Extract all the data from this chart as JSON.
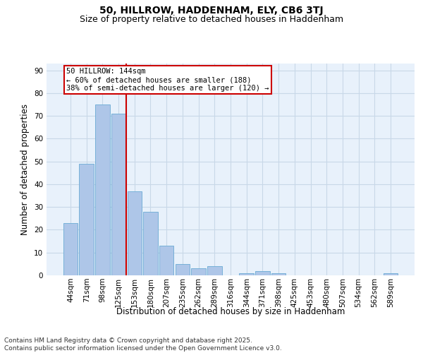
{
  "title": "50, HILLROW, HADDENHAM, ELY, CB6 3TJ",
  "subtitle": "Size of property relative to detached houses in Haddenham",
  "xlabel": "Distribution of detached houses by size in Haddenham",
  "ylabel": "Number of detached properties",
  "categories": [
    "44sqm",
    "71sqm",
    "98sqm",
    "125sqm",
    "153sqm",
    "180sqm",
    "207sqm",
    "235sqm",
    "262sqm",
    "289sqm",
    "316sqm",
    "344sqm",
    "371sqm",
    "398sqm",
    "425sqm",
    "453sqm",
    "480sqm",
    "507sqm",
    "534sqm",
    "562sqm",
    "589sqm"
  ],
  "values": [
    23,
    49,
    75,
    71,
    37,
    28,
    13,
    5,
    3,
    4,
    0,
    1,
    2,
    1,
    0,
    0,
    0,
    0,
    0,
    0,
    1
  ],
  "bar_color": "#aec6e8",
  "bar_edge_color": "#6aaad4",
  "vline_color": "#cc0000",
  "annotation_text": "50 HILLROW: 144sqm\n← 60% of detached houses are smaller (188)\n38% of semi-detached houses are larger (120) →",
  "annotation_box_color": "#cc0000",
  "ylim": [
    0,
    93
  ],
  "yticks": [
    0,
    10,
    20,
    30,
    40,
    50,
    60,
    70,
    80,
    90
  ],
  "grid_color": "#c8d8e8",
  "background_color": "#e8f1fb",
  "footer": "Contains HM Land Registry data © Crown copyright and database right 2025.\nContains public sector information licensed under the Open Government Licence v3.0.",
  "title_fontsize": 10,
  "subtitle_fontsize": 9,
  "xlabel_fontsize": 8.5,
  "ylabel_fontsize": 8.5,
  "tick_fontsize": 7.5,
  "annotation_fontsize": 7.5,
  "footer_fontsize": 6.5
}
